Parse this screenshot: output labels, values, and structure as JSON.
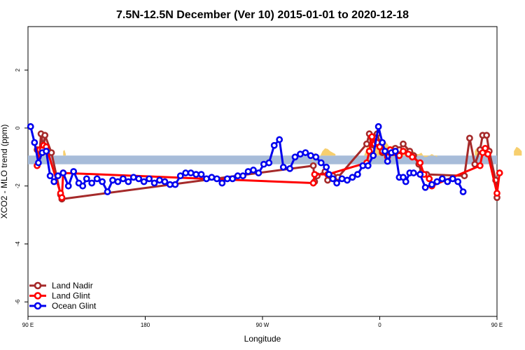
{
  "chart_data": {
    "type": "line",
    "title": "7.5N-12.5N December (Ver 10)   2015-01-01 to 2020-12-18",
    "xlabel": "Longitude",
    "ylabel": "XCO2 - MLO trend (ppm)",
    "xlim": [
      90,
      450
    ],
    "ylim": [
      -6.5,
      3.5
    ],
    "x_ticks": [
      {
        "value": 90,
        "label": "90 E"
      },
      {
        "value": 180,
        "label": "180"
      },
      {
        "value": 270,
        "label": "90 W"
      },
      {
        "value": 360,
        "label": "0"
      },
      {
        "value": 450,
        "label": "90 E"
      },
      {
        "value": 540,
        "label": "180"
      }
    ],
    "y_ticks": [
      {
        "value": 2,
        "label": "2"
      },
      {
        "value": 0,
        "label": "0"
      },
      {
        "value": -2,
        "label": "-2"
      },
      {
        "value": -4,
        "label": "-4"
      },
      {
        "value": -6,
        "label": "-6"
      }
    ],
    "band": {
      "ymin": -1.25,
      "ymax": -0.95,
      "color": "#a7bcd9"
    },
    "land_fill_color": "#f7cf6e",
    "land_fill_regions": [
      {
        "x": [
          98,
          100,
          102,
          104
        ],
        "y": [
          -0.75,
          -0.7,
          -0.7,
          -0.8
        ]
      },
      {
        "x": [
          117,
          118,
          119
        ],
        "y": [
          -0.8,
          -0.75,
          -0.9
        ]
      },
      {
        "x": [
          308,
          310,
          312,
          314,
          316,
          318,
          320,
          322,
          324,
          326
        ],
        "y": [
          -1.2,
          -0.85,
          -0.9,
          -1.0,
          -0.8,
          -0.7,
          -0.72,
          -0.8,
          -0.85,
          -0.9
        ]
      },
      {
        "x": [
          348,
          350,
          352,
          354,
          356,
          358,
          360,
          362,
          364,
          366,
          368,
          370,
          372,
          374,
          376,
          378,
          380,
          382,
          384,
          386,
          388,
          390,
          392,
          394,
          396,
          398,
          400,
          402,
          404
        ],
        "y": [
          -0.95,
          -0.7,
          -0.6,
          -0.55,
          -0.5,
          -0.55,
          -0.5,
          -0.52,
          -0.45,
          -0.55,
          -0.7,
          -0.6,
          -0.75,
          -0.7,
          -0.65,
          -0.8,
          -0.7,
          -0.75,
          -0.85,
          -0.8,
          -0.9,
          -0.9,
          -0.85,
          -1.0,
          -1.0,
          -0.95,
          -0.9,
          -0.95,
          -1.0
        ]
      },
      {
        "x": [
          433,
          434,
          435,
          436
        ],
        "y": [
          -0.8,
          -0.7,
          -0.75,
          -0.9
        ]
      },
      {
        "x": [
          463,
          465,
          467,
          469
        ],
        "y": [
          -0.8,
          -0.65,
          -0.7,
          -0.8
        ]
      },
      {
        "x": [
          481,
          482,
          483
        ],
        "y": [
          -0.85,
          -0.8,
          -0.9
        ]
      }
    ],
    "series": [
      {
        "name": "Land Nadir",
        "color": "#a52a2a",
        "points": [
          [
            97,
            -0.75
          ],
          [
            99,
            -0.8
          ],
          [
            100,
            -0.2
          ],
          [
            102,
            -0.7
          ],
          [
            103,
            -0.25
          ],
          [
            108,
            -0.85
          ],
          [
            115,
            -2.3
          ],
          [
            116,
            -2.45
          ],
          [
            309,
            -1.3
          ],
          [
            310,
            -1.85
          ],
          [
            312,
            -1.65
          ],
          [
            318,
            -1.5
          ],
          [
            320,
            -1.8
          ],
          [
            324,
            -1.65
          ],
          [
            328,
            -1.7
          ],
          [
            350,
            -0.55
          ],
          [
            352,
            -0.2
          ],
          [
            354,
            -0.75
          ],
          [
            356,
            -0.3
          ],
          [
            358,
            -0.2
          ],
          [
            360,
            -0.5
          ],
          [
            362,
            -0.85
          ],
          [
            366,
            -0.95
          ],
          [
            370,
            -0.85
          ],
          [
            372,
            -0.7
          ],
          [
            375,
            -0.75
          ],
          [
            378,
            -0.55
          ],
          [
            383,
            -0.8
          ],
          [
            386,
            -0.95
          ],
          [
            390,
            -1.25
          ],
          [
            392,
            -1.55
          ],
          [
            396,
            -1.6
          ],
          [
            425,
            -1.65
          ],
          [
            429,
            -0.35
          ],
          [
            433,
            -1.25
          ],
          [
            437,
            -0.75
          ],
          [
            439,
            -0.25
          ],
          [
            442,
            -0.25
          ],
          [
            444,
            -0.8
          ],
          [
            449,
            -1.8
          ],
          [
            450,
            -2.4
          ]
        ]
      },
      {
        "name": "Land Glint",
        "color": "#ff0000",
        "points": [
          [
            97,
            -1.3
          ],
          [
            99,
            -0.75
          ],
          [
            101,
            -0.75
          ],
          [
            102,
            -0.6
          ],
          [
            104,
            -0.65
          ],
          [
            115,
            -2.25
          ],
          [
            116,
            -2.4
          ],
          [
            117,
            -1.55
          ],
          [
            309,
            -1.9
          ],
          [
            310,
            -1.6
          ],
          [
            320,
            -1.6
          ],
          [
            350,
            -1.2
          ],
          [
            352,
            -0.8
          ],
          [
            354,
            -0.3
          ],
          [
            356,
            -0.55
          ],
          [
            358,
            -0.5
          ],
          [
            360,
            -0.65
          ],
          [
            362,
            -0.8
          ],
          [
            366,
            -1.0
          ],
          [
            368,
            -0.75
          ],
          [
            372,
            -0.85
          ],
          [
            375,
            -0.95
          ],
          [
            378,
            -0.8
          ],
          [
            382,
            -0.9
          ],
          [
            385,
            -1.0
          ],
          [
            391,
            -1.2
          ],
          [
            394,
            -1.6
          ],
          [
            398,
            -1.75
          ],
          [
            400,
            -2.0
          ],
          [
            437,
            -1.3
          ],
          [
            439,
            -0.85
          ],
          [
            441,
            -0.7
          ],
          [
            443,
            -0.9
          ],
          [
            450,
            -2.25
          ],
          [
            452,
            -1.55
          ]
        ]
      },
      {
        "name": "Ocean Glint",
        "color": "#0000ee",
        "points": [
          [
            92,
            0.05
          ],
          [
            95,
            -0.5
          ],
          [
            98,
            -1.2
          ],
          [
            101,
            -0.85
          ],
          [
            104,
            -0.8
          ],
          [
            107,
            -1.65
          ],
          [
            110,
            -1.85
          ],
          [
            113,
            -1.65
          ],
          [
            117,
            -1.55
          ],
          [
            121,
            -2.0
          ],
          [
            125,
            -1.5
          ],
          [
            129,
            -1.9
          ],
          [
            132,
            -2.0
          ],
          [
            135,
            -1.75
          ],
          [
            139,
            -1.9
          ],
          [
            143,
            -1.75
          ],
          [
            147,
            -1.85
          ],
          [
            151,
            -2.2
          ],
          [
            155,
            -1.8
          ],
          [
            159,
            -1.85
          ],
          [
            163,
            -1.75
          ],
          [
            167,
            -1.85
          ],
          [
            171,
            -1.7
          ],
          [
            175,
            -1.75
          ],
          [
            179,
            -1.85
          ],
          [
            183,
            -1.75
          ],
          [
            187,
            -1.9
          ],
          [
            191,
            -1.8
          ],
          [
            195,
            -1.85
          ],
          [
            199,
            -1.95
          ],
          [
            203,
            -1.95
          ],
          [
            207,
            -1.65
          ],
          [
            211,
            -1.55
          ],
          [
            215,
            -1.55
          ],
          [
            219,
            -1.6
          ],
          [
            223,
            -1.6
          ],
          [
            227,
            -1.75
          ],
          [
            231,
            -1.7
          ],
          [
            235,
            -1.75
          ],
          [
            239,
            -1.9
          ],
          [
            243,
            -1.75
          ],
          [
            247,
            -1.75
          ],
          [
            251,
            -1.65
          ],
          [
            255,
            -1.65
          ],
          [
            259,
            -1.5
          ],
          [
            263,
            -1.45
          ],
          [
            267,
            -1.55
          ],
          [
            271,
            -1.25
          ],
          [
            275,
            -1.2
          ],
          [
            279,
            -0.6
          ],
          [
            283,
            -0.4
          ],
          [
            286,
            -1.35
          ],
          [
            291,
            -1.4
          ],
          [
            295,
            -1.0
          ],
          [
            299,
            -0.9
          ],
          [
            303,
            -0.85
          ],
          [
            307,
            -0.95
          ],
          [
            311,
            -1.0
          ],
          [
            315,
            -1.2
          ],
          [
            319,
            -1.35
          ],
          [
            321,
            -1.6
          ],
          [
            324,
            -1.75
          ],
          [
            327,
            -1.9
          ],
          [
            331,
            -1.75
          ],
          [
            335,
            -1.8
          ],
          [
            339,
            -1.7
          ],
          [
            343,
            -1.6
          ],
          [
            347,
            -1.3
          ],
          [
            351,
            -1.3
          ],
          [
            355,
            -0.95
          ],
          [
            359,
            0.05
          ],
          [
            362,
            -0.5
          ],
          [
            364,
            -0.8
          ],
          [
            366,
            -1.15
          ],
          [
            369,
            -0.85
          ],
          [
            372,
            -0.8
          ],
          [
            375,
            -1.7
          ],
          [
            378,
            -1.7
          ],
          [
            380,
            -1.85
          ],
          [
            383,
            -1.55
          ],
          [
            386,
            -1.55
          ],
          [
            391,
            -1.6
          ],
          [
            395,
            -2.05
          ],
          [
            400,
            -1.95
          ],
          [
            404,
            -1.85
          ],
          [
            408,
            -1.75
          ],
          [
            412,
            -1.85
          ],
          [
            416,
            -1.75
          ],
          [
            420,
            -1.85
          ],
          [
            424,
            -2.2
          ]
        ]
      }
    ],
    "legend": {
      "position": "bottom-left",
      "entries": [
        "Land Nadir",
        "Land Glint",
        "Ocean Glint"
      ]
    }
  }
}
